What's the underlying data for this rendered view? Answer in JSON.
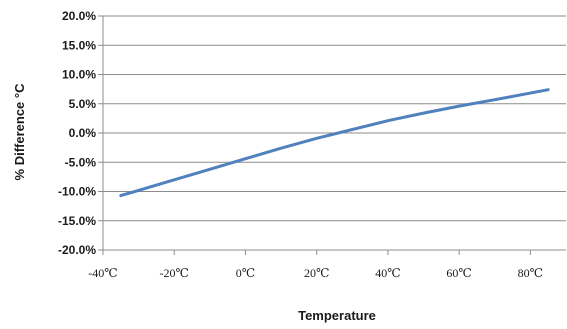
{
  "chart_data": {
    "type": "line",
    "title": "",
    "ylabel": "% Difference °C",
    "xlabel": "Temperature",
    "xlim": [
      -40,
      90
    ],
    "ylim": [
      -20,
      20
    ],
    "x_ticks": [
      "-40℃",
      "-20℃",
      "0℃",
      "20℃",
      "40℃",
      "60℃",
      "80℃"
    ],
    "y_ticks": [
      "20.0%",
      "15.0%",
      "10.0%",
      "5.0%",
      "0.0%",
      "-5.0%",
      "-10.0%",
      "-15.0%",
      "-20.0%"
    ],
    "y_tick_values": [
      20,
      15,
      10,
      5,
      0,
      -5,
      -10,
      -15,
      -20
    ],
    "x_tick_values": [
      -40,
      -20,
      0,
      20,
      40,
      60,
      80
    ],
    "grid": "horizontal",
    "series": [
      {
        "color": "#4f81bd",
        "x": [
          -35,
          -20,
          -10,
          0,
          10,
          20,
          30,
          40,
          50,
          60,
          70,
          85
        ],
        "y": [
          -10.7,
          -8.0,
          -6.2,
          -4.4,
          -2.6,
          -0.9,
          0.6,
          2.1,
          3.4,
          4.6,
          5.7,
          7.4
        ]
      }
    ]
  }
}
